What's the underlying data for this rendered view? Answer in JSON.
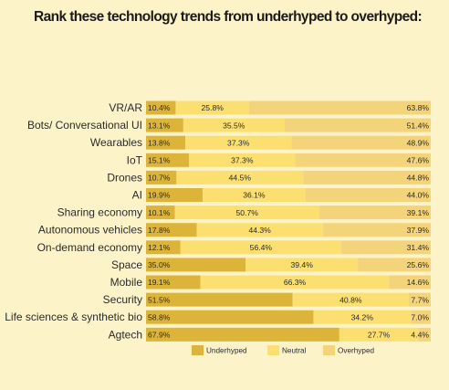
{
  "title": "Rank these technology trends from underhyped to overhyped:",
  "chart_data": {
    "type": "bar",
    "stacked": true,
    "orientation": "horizontal",
    "title": "Rank these technology trends from underhyped to overhyped:",
    "categories": [
      "VR/AR",
      "Bots/ Conversational UI",
      "Wearables",
      "IoT",
      "Drones",
      "AI",
      "Sharing economy",
      "Autonomous vehicles",
      "On-demand economy",
      "Space",
      "Mobile",
      "Security",
      "Life sciences & synthetic bio",
      "Agtech"
    ],
    "series": [
      {
        "name": "Underhyped",
        "color": "#ddb43a",
        "values": [
          10.4,
          13.1,
          13.8,
          15.1,
          10.7,
          19.9,
          10.1,
          17.8,
          12.1,
          35.0,
          19.1,
          51.5,
          58.8,
          67.9
        ],
        "labels": [
          "10.4%",
          "13.1%",
          "13.8%",
          "15.1%",
          "10.7%",
          "19.9%",
          "10.1%",
          "17.8%",
          "12.1%",
          "35.0%",
          "19.1%",
          "51.5%",
          "58.8%",
          "67.9%"
        ]
      },
      {
        "name": "Neutral",
        "color": "#fbe071",
        "values": [
          25.8,
          35.5,
          37.3,
          37.3,
          44.5,
          36.1,
          50.7,
          44.3,
          56.4,
          39.4,
          66.3,
          40.8,
          34.2,
          27.7
        ],
        "labels": [
          "25.8%",
          "35.5%",
          "37.3%",
          "37.3%",
          "44.5%",
          "36.1%",
          "50.7%",
          "44.3%",
          "56.4%",
          "39.4%",
          "66.3%",
          "40.8%",
          "34.2%",
          "27.7%"
        ]
      },
      {
        "name": "Overhyped",
        "color": "#f4d47a",
        "values": [
          63.8,
          51.4,
          48.9,
          47.6,
          44.8,
          44.0,
          39.1,
          37.9,
          31.4,
          25.6,
          14.6,
          7.7,
          7.0,
          4.4
        ],
        "labels": [
          "63.8%",
          "51.4%",
          "48.9%",
          "47.6%",
          "44.8%",
          "44.0%",
          "39.1%",
          "37.9%",
          "31.4%",
          "25.6%",
          "14.6%",
          "7.7%",
          "7.0%",
          "4.4%"
        ]
      }
    ],
    "legend": {
      "position": "bottom",
      "items": [
        "Underhyped",
        "Neutral",
        "Overhyped"
      ]
    },
    "xlim": [
      0,
      100
    ],
    "grid": false
  }
}
